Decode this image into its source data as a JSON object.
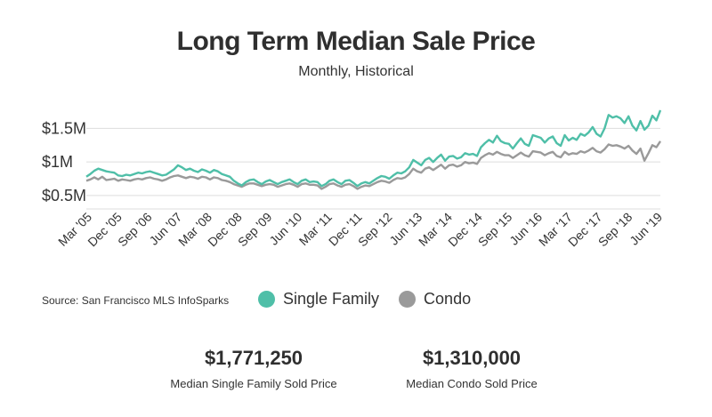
{
  "colors": {
    "single_family": "#4fbfa8",
    "condo": "#9a9a9a",
    "grid": "#dddddd"
  },
  "source": "Source:  San Francisco MLS InfoSparks",
  "stats": [
    {
      "value": "$1,771,250",
      "label": "Median Single Family Sold Price"
    },
    {
      "value": "$1,310,000",
      "label": "Median Condo Sold Price"
    }
  ],
  "chart_data": {
    "type": "line",
    "title": "Long Term Median Sale Price",
    "subtitle": "Monthly, Historical",
    "xlabel": "",
    "ylabel": "",
    "x_start": "Mar '05",
    "x_end": "Jun '19",
    "x_ticks": [
      "Mar '05",
      "Dec '05",
      "Sep '06",
      "Jun '07",
      "Mar '08",
      "Dec '08",
      "Sep '09",
      "Jun '10",
      "Mar '11",
      "Dec '11",
      "Sep '12",
      "Jun '13",
      "Mar '14",
      "Dec '14",
      "Sep '15",
      "Jun '16",
      "Mar '17",
      "Dec '17",
      "Sep '18",
      "Jun '19"
    ],
    "y_ticks": [
      {
        "value": 0.5,
        "label": "$0.5M"
      },
      {
        "value": 1.0,
        "label": "$1M"
      },
      {
        "value": 1.5,
        "label": "$1.5M"
      }
    ],
    "ylim": [
      0.3,
      1.85
    ],
    "grid": true,
    "legend_position": "bottom",
    "series": [
      {
        "name": "Single Family",
        "values": [
          0.78,
          0.82,
          0.87,
          0.9,
          0.88,
          0.86,
          0.85,
          0.84,
          0.8,
          0.79,
          0.81,
          0.8,
          0.82,
          0.84,
          0.83,
          0.85,
          0.86,
          0.84,
          0.82,
          0.8,
          0.81,
          0.85,
          0.89,
          0.95,
          0.92,
          0.88,
          0.9,
          0.87,
          0.85,
          0.89,
          0.87,
          0.84,
          0.88,
          0.86,
          0.82,
          0.8,
          0.78,
          0.72,
          0.68,
          0.65,
          0.7,
          0.73,
          0.74,
          0.7,
          0.67,
          0.71,
          0.73,
          0.7,
          0.67,
          0.7,
          0.72,
          0.74,
          0.7,
          0.67,
          0.72,
          0.74,
          0.7,
          0.71,
          0.7,
          0.64,
          0.67,
          0.72,
          0.74,
          0.7,
          0.67,
          0.72,
          0.73,
          0.69,
          0.64,
          0.68,
          0.7,
          0.68,
          0.72,
          0.76,
          0.79,
          0.78,
          0.75,
          0.8,
          0.84,
          0.83,
          0.86,
          0.92,
          1.03,
          0.99,
          0.95,
          1.03,
          1.06,
          1.0,
          1.06,
          1.11,
          1.02,
          1.08,
          1.09,
          1.05,
          1.07,
          1.13,
          1.11,
          1.12,
          1.09,
          1.22,
          1.28,
          1.33,
          1.29,
          1.39,
          1.31,
          1.28,
          1.27,
          1.2,
          1.28,
          1.35,
          1.27,
          1.24,
          1.4,
          1.38,
          1.36,
          1.29,
          1.35,
          1.38,
          1.28,
          1.24,
          1.4,
          1.32,
          1.36,
          1.33,
          1.42,
          1.39,
          1.44,
          1.52,
          1.42,
          1.38,
          1.5,
          1.7,
          1.66,
          1.68,
          1.65,
          1.58,
          1.68,
          1.54,
          1.47,
          1.61,
          1.48,
          1.54,
          1.69,
          1.62,
          1.77
        ]
      },
      {
        "name": "Condo",
        "values": [
          0.72,
          0.74,
          0.77,
          0.74,
          0.78,
          0.73,
          0.74,
          0.75,
          0.72,
          0.74,
          0.73,
          0.72,
          0.74,
          0.75,
          0.74,
          0.76,
          0.77,
          0.75,
          0.74,
          0.72,
          0.74,
          0.77,
          0.79,
          0.8,
          0.78,
          0.76,
          0.78,
          0.77,
          0.75,
          0.78,
          0.77,
          0.74,
          0.77,
          0.76,
          0.73,
          0.72,
          0.7,
          0.67,
          0.65,
          0.63,
          0.66,
          0.68,
          0.68,
          0.66,
          0.64,
          0.66,
          0.67,
          0.66,
          0.63,
          0.65,
          0.67,
          0.68,
          0.66,
          0.63,
          0.67,
          0.68,
          0.66,
          0.66,
          0.65,
          0.6,
          0.63,
          0.67,
          0.68,
          0.65,
          0.63,
          0.66,
          0.67,
          0.64,
          0.6,
          0.63,
          0.65,
          0.64,
          0.67,
          0.7,
          0.72,
          0.71,
          0.69,
          0.73,
          0.76,
          0.75,
          0.77,
          0.82,
          0.9,
          0.86,
          0.84,
          0.9,
          0.92,
          0.88,
          0.92,
          0.96,
          0.9,
          0.95,
          0.96,
          0.93,
          0.95,
          1.0,
          0.98,
          0.99,
          0.97,
          1.06,
          1.1,
          1.13,
          1.11,
          1.15,
          1.12,
          1.1,
          1.1,
          1.06,
          1.1,
          1.14,
          1.1,
          1.08,
          1.16,
          1.15,
          1.14,
          1.1,
          1.13,
          1.15,
          1.09,
          1.07,
          1.15,
          1.11,
          1.13,
          1.12,
          1.16,
          1.14,
          1.17,
          1.21,
          1.16,
          1.14,
          1.19,
          1.26,
          1.24,
          1.25,
          1.23,
          1.2,
          1.24,
          1.17,
          1.12,
          1.2,
          1.02,
          1.13,
          1.25,
          1.22,
          1.31
        ]
      }
    ]
  }
}
